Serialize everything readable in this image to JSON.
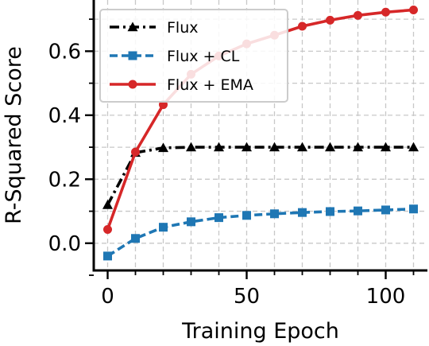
{
  "chart_data": {
    "type": "line",
    "title": "",
    "xlabel": "Training Epoch",
    "ylabel": "R-Squared Score",
    "xlim": [
      -5,
      115
    ],
    "ylim": [
      -0.085,
      0.76
    ],
    "xticks": [
      0,
      50,
      100
    ],
    "yticks": [
      0.0,
      0.2,
      0.4,
      0.6
    ],
    "grid": true,
    "legend_position": "top-left",
    "series": [
      {
        "name": "Flux",
        "color": "#000000",
        "marker": "triangle",
        "linestyle": "dashdot",
        "x": [
          0,
          10,
          20,
          30,
          40,
          50,
          60,
          70,
          80,
          90,
          100,
          110
        ],
        "y": [
          0.12,
          0.283,
          0.298,
          0.3,
          0.3,
          0.3,
          0.3,
          0.3,
          0.3,
          0.3,
          0.3,
          0.3
        ]
      },
      {
        "name": "Flux + CL",
        "color": "#1f77b4",
        "marker": "square",
        "linestyle": "dashed",
        "x": [
          0,
          10,
          20,
          30,
          40,
          50,
          60,
          70,
          80,
          90,
          100,
          110
        ],
        "y": [
          -0.04,
          0.015,
          0.05,
          0.067,
          0.08,
          0.087,
          0.092,
          0.096,
          0.099,
          0.101,
          0.104,
          0.107
        ]
      },
      {
        "name": "Flux + EMA",
        "color": "#d62728",
        "marker": "circle",
        "linestyle": "solid",
        "x": [
          0,
          10,
          20,
          30,
          40,
          50,
          60,
          70,
          80,
          90,
          100,
          110
        ],
        "y": [
          0.043,
          0.285,
          0.433,
          0.528,
          0.585,
          0.623,
          0.65,
          0.678,
          0.697,
          0.712,
          0.722,
          0.729
        ]
      }
    ]
  }
}
